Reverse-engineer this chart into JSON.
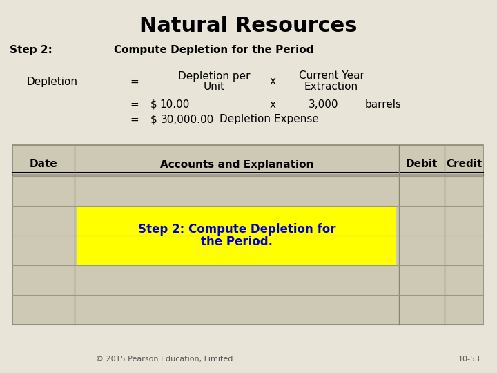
{
  "title": "Natural Resources",
  "bg_color": "#e8e4d8",
  "title_fontsize": 22,
  "step_label": "Step 2:",
  "step_heading": "Compute Depletion for the Period",
  "depletion_label": "Depletion",
  "eq1_line1": "Depletion per",
  "eq1_line2": "Unit",
  "eq1_x": "x",
  "eq1_right_line1": "Current Year",
  "eq1_right_line2": "Extraction",
  "eq2_dollar": "$",
  "eq2_amount": "10.00",
  "eq2_x": "x",
  "eq2_value": "3,000",
  "eq2_unit": "barrels",
  "eq3_dollar": "$",
  "eq3_amount": "30,000.00",
  "eq3_label": "Depletion Expense",
  "table_header_date": "Date",
  "table_header_accounts": "Accounts and Explanation",
  "table_header_debit": "Debit",
  "table_header_credit": "Credit",
  "highlight_text_line1": "Step 2: Compute Depletion for",
  "highlight_text_line2": "the Period.",
  "highlight_color": "#ffff00",
  "highlight_text_color": "#0000cc",
  "table_bg_color": "#cdc9b4",
  "footer_left": "© 2015 Pearson Education, Limited.",
  "footer_right": "10-53",
  "footer_fontsize": 8,
  "body_fontsize": 11,
  "step_fontsize": 11
}
